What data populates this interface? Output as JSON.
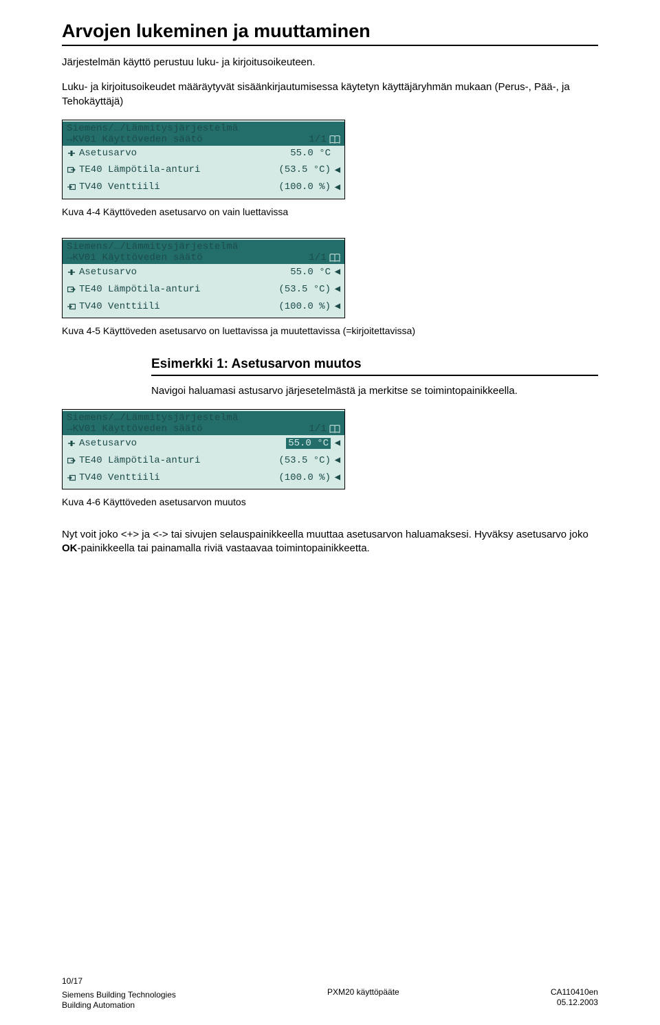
{
  "heading": "Arvojen lukeminen ja muuttaminen",
  "intro1": "Järjestelmän käyttö perustuu luku- ja kirjoitusoikeuteen.",
  "intro2": "Luku- ja kirjoitusoikeudet määräytyvät sisäänkirjautumisessa käytetyn käyttäjäryhmän mukaan (Perus-, Pää-, ja Tehokäyttäjä)",
  "fig44cap": "Kuva 4-4 Käyttöveden asetusarvo on vain luettavissa",
  "fig45cap": "Kuva 4-5 Käyttöveden asetusarvo on luettavissa ja muutettavissa (=kirjoitettavissa)",
  "sub_title": "Esimerkki 1: Asetusarvon muutos",
  "sub_body": "Navigoi haluamasi astusarvo järjesetelmästä ja merkitse se toimintopainikkeella.",
  "fig46cap": "Kuva 4-6 Käyttöveden asetusarvon muutos",
  "para3a": "Nyt voit joko <+> ja <-> tai sivujen selauspainikkeella muuttaa asetusarvon haluamaksesi. Hyväksy asetusarvo joko ",
  "para3b_bold": "OK",
  "para3c": "-painikkeella tai painamalla riviä vastaavaa toimintopainikkeetta.",
  "lcd": {
    "bg": "#d5e9e5",
    "header_bg": "#236e6b",
    "text": "#1c4c4a",
    "path_line": "Siemens/…/Lämmitysjärjestelmä",
    "title_prefix": "→",
    "title": "KV01 Käyttöveden säätö",
    "page": "1/1",
    "book": "▯▯",
    "rows": [
      {
        "icon": "slider",
        "label": "Asetusarvo",
        "value": "55.0 °C"
      },
      {
        "icon": "input",
        "label": "TE40 Lämpötila-anturi",
        "value": "(53.5 °C)"
      },
      {
        "icon": "output",
        "label": "TV40 Venttiili",
        "value": "(100.0 %)"
      }
    ],
    "marker": "◀"
  },
  "footer": {
    "pagenum": "10/17",
    "left1": "Siemens Building Technologies",
    "left2": "Building Automation",
    "center": "PXM20 käyttöpääte",
    "right1": "CA110410en",
    "right2": "05.12.2003"
  }
}
